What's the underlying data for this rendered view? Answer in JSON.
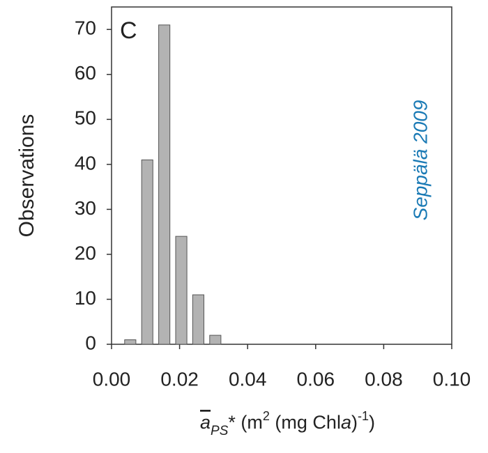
{
  "chart_data": {
    "type": "histogram",
    "ylabel": "Observations",
    "xlabel": [
      "a",
      "PS",
      "*",
      " (m",
      "2",
      " (mg Chl",
      "a",
      ")",
      "-1",
      ")"
    ],
    "annotations": [
      "C",
      "Seppälä 2009"
    ],
    "bins": [
      0.003,
      0.008,
      0.013,
      0.018,
      0.023,
      0.028,
      0.033
    ],
    "values": [
      1,
      41,
      71,
      24,
      11,
      2
    ],
    "color": "#b3b3b3",
    "xlim": [
      0,
      0.1
    ],
    "xticks": [
      {
        "value": 0,
        "label": "0.00"
      },
      {
        "value": 0.02,
        "label": "0.02"
      },
      {
        "value": 0.04,
        "label": "0.04"
      },
      {
        "value": 0.06,
        "label": "0.06"
      },
      {
        "value": 0.08,
        "label": "0.08"
      },
      {
        "value": 0.1,
        "label": "0.10"
      }
    ],
    "ylim": [
      0,
      75
    ],
    "yticks": [
      0,
      10,
      20,
      30,
      40,
      50,
      60,
      70
    ]
  }
}
